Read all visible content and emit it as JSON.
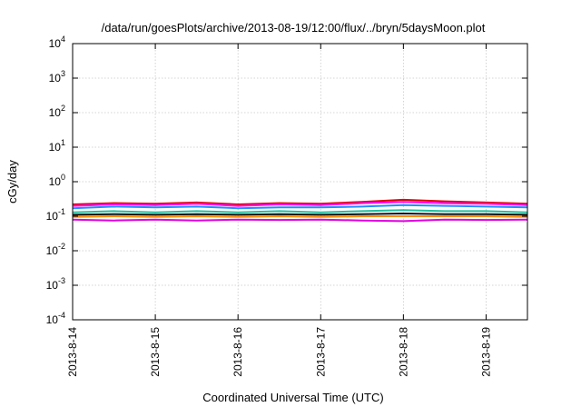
{
  "chart_data": {
    "type": "line",
    "title": "/data/run/goesPlots/archive/2013-08-19/12:00/flux/../bryn/5daysMoon.plot",
    "xlabel": "Coordinated Universal Time (UTC)",
    "ylabel": "cGy/day",
    "yscale": "log",
    "ylim": [
      0.0001,
      10000
    ],
    "xlim": [
      "2013-08-14T00:00",
      "2013-08-19T12:00"
    ],
    "x_ticks": [
      "2013-8-14",
      "2013-8-15",
      "2013-8-16",
      "2013-8-17",
      "2013-8-18",
      "2013-8-19"
    ],
    "y_ticks": [
      {
        "base": "10",
        "exp": "-4"
      },
      {
        "base": "10",
        "exp": "-3"
      },
      {
        "base": "10",
        "exp": "-2"
      },
      {
        "base": "10",
        "exp": "-1"
      },
      {
        "base": "10",
        "exp": "0"
      },
      {
        "base": "10",
        "exp": "1"
      },
      {
        "base": "10",
        "exp": "2"
      },
      {
        "base": "10",
        "exp": "3"
      },
      {
        "base": "10",
        "exp": "4"
      }
    ],
    "grid": true,
    "x": [
      "2013-08-14T00:00",
      "2013-08-14T12:00",
      "2013-08-15T00:00",
      "2013-08-15T12:00",
      "2013-08-16T00:00",
      "2013-08-16T12:00",
      "2013-08-17T00:00",
      "2013-08-17T12:00",
      "2013-08-18T00:00",
      "2013-08-18T12:00",
      "2013-08-19T00:00",
      "2013-08-19T12:00"
    ],
    "series": [
      {
        "color": "#e00000",
        "values": [
          0.22,
          0.24,
          0.23,
          0.25,
          0.22,
          0.24,
          0.23,
          0.26,
          0.3,
          0.27,
          0.25,
          0.23
        ]
      },
      {
        "color": "#ff00ff",
        "values": [
          0.2,
          0.22,
          0.21,
          0.23,
          0.2,
          0.22,
          0.21,
          0.24,
          0.26,
          0.24,
          0.23,
          0.21
        ]
      },
      {
        "color": "#1e90ff",
        "values": [
          0.17,
          0.19,
          0.18,
          0.19,
          0.17,
          0.18,
          0.18,
          0.19,
          0.21,
          0.2,
          0.19,
          0.18
        ]
      },
      {
        "color": "#20c0a0",
        "values": [
          0.13,
          0.14,
          0.13,
          0.14,
          0.13,
          0.14,
          0.13,
          0.14,
          0.15,
          0.14,
          0.14,
          0.13
        ]
      },
      {
        "color": "#101010",
        "values": [
          0.11,
          0.115,
          0.11,
          0.115,
          0.11,
          0.115,
          0.11,
          0.115,
          0.12,
          0.115,
          0.115,
          0.11
        ]
      },
      {
        "color": "#ff8c00",
        "values": [
          0.095,
          0.1,
          0.095,
          0.1,
          0.095,
          0.1,
          0.095,
          0.1,
          0.1,
          0.1,
          0.1,
          0.095
        ]
      },
      {
        "color": "#e000e0",
        "values": [
          0.08,
          0.075,
          0.08,
          0.075,
          0.08,
          0.078,
          0.08,
          0.075,
          0.072,
          0.08,
          0.078,
          0.08
        ]
      }
    ]
  }
}
